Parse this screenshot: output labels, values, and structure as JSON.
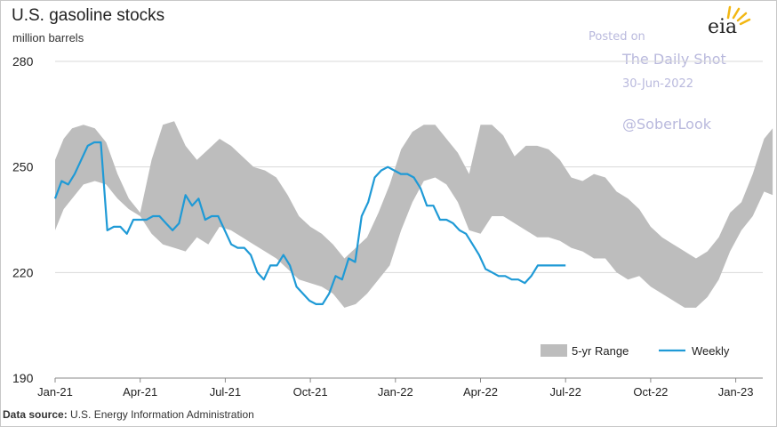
{
  "header": {
    "title": "U.S. gasoline stocks",
    "subtitle": "million barrels"
  },
  "watermark": {
    "posted_on": "Posted on",
    "publication": "The Daily Shot",
    "date": "30-Jun-2022",
    "handle": "@SoberLook"
  },
  "logo": {
    "text": "eia",
    "icon": "eia-sun-icon"
  },
  "source": {
    "prefix": "Data source:",
    "text": "U.S. Energy Information Administration"
  },
  "colors": {
    "range": "#bdbdbd",
    "weekly": "#1f9ad6",
    "grid": "#d9d9d9"
  },
  "chart_data": {
    "type": "area",
    "title": "U.S. gasoline stocks",
    "ylabel": "million barrels",
    "xlabel": "",
    "ylim": [
      190,
      280
    ],
    "yticks": [
      190,
      220,
      250,
      280
    ],
    "xlim": [
      0,
      25.3
    ],
    "x_unit": "months since Jan-21",
    "xticks": [
      {
        "label": "Jan-21",
        "x": 0
      },
      {
        "label": "Apr-21",
        "x": 3
      },
      {
        "label": "Jul-21",
        "x": 6
      },
      {
        "label": "Oct-21",
        "x": 9
      },
      {
        "label": "Jan-22",
        "x": 12
      },
      {
        "label": "Apr-22",
        "x": 15
      },
      {
        "label": "Jul-22",
        "x": 18
      },
      {
        "label": "Oct-22",
        "x": 21
      },
      {
        "label": "Jan-23",
        "x": 24
      }
    ],
    "grid": true,
    "legend_position": "bottom-right",
    "series": [
      {
        "name": "5-yr Range",
        "type": "range",
        "x": [
          0,
          0.3,
          0.6,
          1.0,
          1.4,
          1.8,
          2.2,
          2.6,
          3.0,
          3.4,
          3.8,
          4.2,
          4.6,
          5.0,
          5.4,
          5.8,
          6.2,
          6.6,
          7.0,
          7.4,
          7.8,
          8.2,
          8.6,
          9.0,
          9.4,
          9.8,
          10.2,
          10.6,
          11.0,
          11.4,
          11.8,
          12.2,
          12.6,
          13.0,
          13.4,
          13.8,
          14.2,
          14.6,
          15.0,
          15.4,
          15.8,
          16.2,
          16.6,
          17.0,
          17.4,
          17.8,
          18.2,
          18.6,
          19.0,
          19.4,
          19.8,
          20.2,
          20.6,
          21.0,
          21.4,
          21.8,
          22.2,
          22.6,
          23.0,
          23.4,
          23.8,
          24.2,
          24.6,
          25.0,
          25.3
        ],
        "low": [
          232,
          238,
          241,
          245,
          246,
          245,
          241,
          238,
          236,
          231,
          228,
          227,
          226,
          230,
          228,
          233,
          232,
          230,
          228,
          226,
          224,
          221,
          218,
          217,
          216,
          214,
          210,
          211,
          214,
          218,
          222,
          232,
          240,
          246,
          247,
          245,
          240,
          232,
          231,
          236,
          236,
          234,
          232,
          230,
          230,
          229,
          227,
          226,
          224,
          224,
          220,
          218,
          219,
          216,
          214,
          212,
          210,
          210,
          213,
          218,
          226,
          232,
          236,
          243,
          242
        ],
        "high": [
          252,
          258,
          261,
          262,
          261,
          257,
          248,
          241,
          237,
          252,
          262,
          263,
          256,
          252,
          255,
          258,
          256,
          253,
          250,
          249,
          247,
          242,
          236,
          233,
          231,
          228,
          224,
          227,
          230,
          237,
          245,
          255,
          260,
          262,
          262,
          258,
          254,
          248,
          262,
          262,
          259,
          253,
          256,
          256,
          255,
          252,
          247,
          246,
          248,
          247,
          243,
          241,
          238,
          233,
          230,
          228,
          226,
          224,
          226,
          230,
          237,
          240,
          248,
          258,
          261
        ]
      },
      {
        "name": "Weekly",
        "type": "line",
        "x": [
          0,
          0.23,
          0.46,
          0.69,
          0.92,
          1.15,
          1.38,
          1.61,
          1.84,
          2.07,
          2.3,
          2.53,
          2.76,
          2.99,
          3.22,
          3.45,
          3.68,
          3.91,
          4.14,
          4.37,
          4.6,
          4.83,
          5.06,
          5.29,
          5.52,
          5.75,
          5.98,
          6.21,
          6.44,
          6.67,
          6.9,
          7.13,
          7.36,
          7.59,
          7.82,
          8.05,
          8.28,
          8.51,
          8.74,
          8.97,
          9.2,
          9.43,
          9.66,
          9.89,
          10.12,
          10.35,
          10.58,
          10.81,
          11.04,
          11.27,
          11.5,
          11.73,
          11.96,
          12.19,
          12.42,
          12.65,
          12.88,
          13.11,
          13.34,
          13.57,
          13.8,
          14.03,
          14.26,
          14.49,
          14.72,
          14.95,
          15.18,
          15.41,
          15.64,
          15.87,
          16.1,
          16.33,
          16.56,
          16.79,
          17.02,
          17.25,
          17.48,
          17.71,
          18.0
        ],
        "values": [
          241,
          246,
          245,
          248,
          252,
          256,
          257,
          257,
          232,
          233,
          233,
          231,
          235,
          235,
          235,
          236,
          236,
          234,
          232,
          234,
          242,
          239,
          241,
          235,
          236,
          236,
          232,
          228,
          227,
          227,
          225,
          220,
          218,
          222,
          222,
          225,
          222,
          216,
          214,
          212,
          211,
          211,
          214,
          219,
          218,
          224,
          223,
          236,
          240,
          247,
          249,
          250,
          249,
          248,
          248,
          247,
          244,
          239,
          239,
          235,
          235,
          234,
          232,
          231,
          228,
          225,
          221,
          220,
          219,
          219,
          218,
          218,
          217,
          219,
          222,
          222,
          222,
          222,
          222
        ]
      }
    ]
  }
}
